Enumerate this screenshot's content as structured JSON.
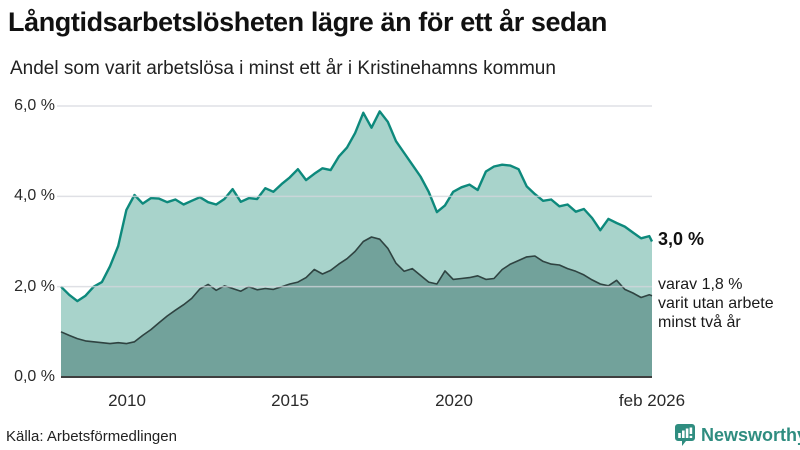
{
  "header": {
    "title": "Långtidsarbetslösheten lägre än för ett år sedan",
    "subtitle": "Andel som varit arbetslösa i minst ett år i Kristinehamns kommun"
  },
  "chart_data": {
    "type": "area",
    "title": "Långtidsarbetslösheten lägre än för ett år sedan",
    "subtitle": "Andel som varit arbetslösa i minst ett år i Kristinehamns kommun",
    "x_start": 2008.0,
    "x_step": 0.25,
    "x_end": 2026.083,
    "ylim": [
      0,
      6
    ],
    "grid": true,
    "yticks": [
      {
        "value": 0,
        "label": "0,0 %"
      },
      {
        "value": 2,
        "label": "2,0 %"
      },
      {
        "value": 4,
        "label": "4,0 %"
      },
      {
        "value": 6,
        "label": "6,0 %"
      }
    ],
    "xticks": [
      {
        "value": 2010,
        "label": "2010"
      },
      {
        "value": 2015,
        "label": "2015"
      },
      {
        "value": 2020,
        "label": "2020"
      },
      {
        "value": 2026.083,
        "label": "feb 2026"
      }
    ],
    "series": [
      {
        "name": "minst ett år",
        "line_color": "#0d897c",
        "fill_color": "#a8d3cb",
        "line_width": 2.4,
        "values": [
          2.0,
          1.82,
          1.68,
          1.8,
          2.0,
          2.1,
          2.45,
          2.9,
          3.7,
          4.03,
          3.84,
          3.96,
          3.95,
          3.87,
          3.93,
          3.82,
          3.9,
          3.98,
          3.87,
          3.82,
          3.94,
          4.16,
          3.88,
          3.96,
          3.94,
          4.18,
          4.1,
          4.27,
          4.42,
          4.6,
          4.36,
          4.5,
          4.62,
          4.58,
          4.88,
          5.08,
          5.4,
          5.85,
          5.52,
          5.88,
          5.65,
          5.22,
          4.96,
          4.7,
          4.44,
          4.1,
          3.65,
          3.8,
          4.1,
          4.2,
          4.26,
          4.14,
          4.55,
          4.66,
          4.7,
          4.68,
          4.6,
          4.22,
          4.05,
          3.9,
          3.93,
          3.78,
          3.82,
          3.66,
          3.72,
          3.52,
          3.25,
          3.5,
          3.41,
          3.33,
          3.2,
          3.07,
          3.12,
          3.0
        ]
      },
      {
        "name": "minst två år",
        "line_color": "#2f4341",
        "fill_color": "#72a29b",
        "line_width": 1.6,
        "values": [
          1.0,
          0.92,
          0.85,
          0.8,
          0.78,
          0.76,
          0.74,
          0.76,
          0.74,
          0.78,
          0.92,
          1.05,
          1.2,
          1.35,
          1.48,
          1.6,
          1.74,
          1.95,
          2.05,
          1.92,
          2.02,
          1.96,
          1.9,
          2.0,
          1.93,
          1.96,
          1.94,
          2.0,
          2.06,
          2.1,
          2.2,
          2.38,
          2.28,
          2.36,
          2.5,
          2.62,
          2.78,
          3.0,
          3.1,
          3.05,
          2.85,
          2.52,
          2.34,
          2.4,
          2.25,
          2.1,
          2.06,
          2.35,
          2.16,
          2.18,
          2.2,
          2.24,
          2.16,
          2.18,
          2.38,
          2.5,
          2.58,
          2.66,
          2.68,
          2.56,
          2.5,
          2.48,
          2.4,
          2.34,
          2.26,
          2.15,
          2.06,
          2.02,
          2.14,
          1.94,
          1.86,
          1.76,
          1.82,
          1.8
        ]
      }
    ],
    "annotations": {
      "series1_end_value": "3,0 %",
      "note_lines": [
        "varav 1,8 %",
        "varit utan arbete",
        "minst två år"
      ]
    },
    "legend_position": "none",
    "axis_color": "#3f3f3f",
    "grid_color": "#d4d6dc"
  },
  "footer": {
    "source": "Källa: Arbetsförmedlingen",
    "logo_text": "Newsworthy",
    "logo_color": "#2f8d80"
  }
}
